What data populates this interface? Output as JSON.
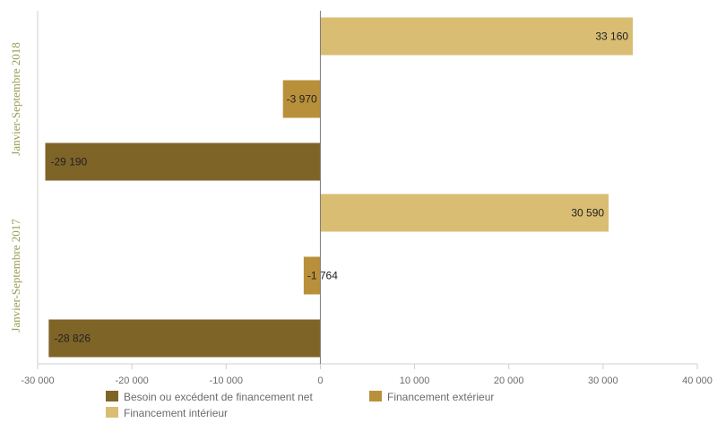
{
  "chart_data": {
    "type": "bar",
    "orientation": "horizontal",
    "categories": [
      "Janvier-Septembre 2018",
      "Janvier-Septembre 2017"
    ],
    "series": [
      {
        "name": "Financement intérieur",
        "color": "#d9bd72",
        "values": [
          33160,
          30590
        ],
        "labels": [
          "33 160",
          "30 590"
        ]
      },
      {
        "name": "Financement extérieur",
        "color": "#b9903a",
        "values": [
          -3970,
          -1764
        ],
        "labels": [
          "-3 970",
          "-1 764"
        ]
      },
      {
        "name": "Besoin ou excédent de financement net",
        "color": "#7f6428",
        "values": [
          -29190,
          -28826
        ],
        "labels": [
          "-29 190",
          "-28 826"
        ]
      }
    ],
    "xlim": [
      -30000,
      40000
    ],
    "xticks": [
      -30000,
      -20000,
      -10000,
      0,
      10000,
      20000,
      30000,
      40000
    ],
    "xtick_labels": [
      "-30 000",
      "-20 000",
      "-10 000",
      "0",
      "10 000",
      "20 000",
      "30 000",
      "40 000"
    ],
    "legend_order": [
      "Besoin ou excédent de financement net",
      "Financement extérieur",
      "Financement intérieur"
    ],
    "legend_position": "bottom",
    "grid": false
  }
}
